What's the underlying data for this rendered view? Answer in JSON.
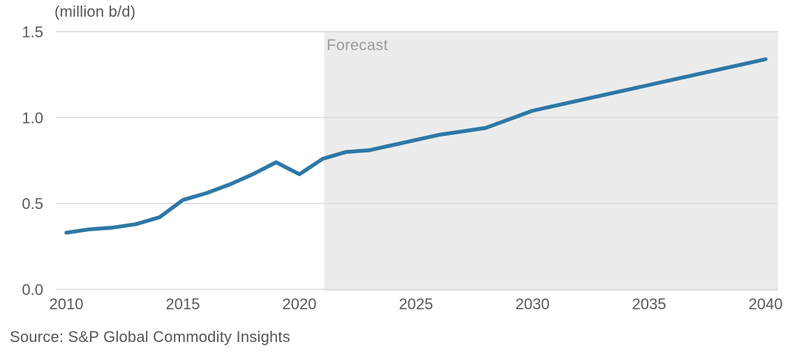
{
  "source": "Source: S&P Global Commodity Insights",
  "chart_data": {
    "type": "line",
    "title": "(million b/d)",
    "xlabel": "",
    "ylabel": "(million b/d)",
    "forecast_label": "Forecast",
    "forecast_start": 2021,
    "xlim": [
      2010,
      2040
    ],
    "ylim": [
      0,
      1.5
    ],
    "grid": true,
    "legend": "none",
    "line_color": "#2E78A6",
    "forecast_shade_color": "#ECECEC",
    "grid_color": "#D7D7D7",
    "x": [
      2010,
      2011,
      2012,
      2013,
      2014,
      2015,
      2016,
      2017,
      2018,
      2019,
      2020,
      2021,
      2022,
      2023,
      2024,
      2025,
      2026,
      2027,
      2028,
      2029,
      2030,
      2031,
      2032,
      2033,
      2034,
      2035,
      2036,
      2037,
      2038,
      2039,
      2040
    ],
    "series": [
      {
        "name": "million b/d",
        "values": [
          0.33,
          0.35,
          0.36,
          0.38,
          0.42,
          0.52,
          0.56,
          0.61,
          0.67,
          0.74,
          0.67,
          0.76,
          0.8,
          0.81,
          0.84,
          0.87,
          0.9,
          0.92,
          0.94,
          0.99,
          1.04,
          1.07,
          1.1,
          1.13,
          1.16,
          1.19,
          1.22,
          1.25,
          1.28,
          1.31,
          1.34
        ]
      }
    ],
    "xticks": [
      {
        "v": 2010,
        "label": "2010"
      },
      {
        "v": 2015,
        "label": "2015"
      },
      {
        "v": 2020,
        "label": "2020"
      },
      {
        "v": 2025,
        "label": "2025"
      },
      {
        "v": 2030,
        "label": "2030"
      },
      {
        "v": 2035,
        "label": "2035"
      },
      {
        "v": 2040,
        "label": "2040"
      }
    ],
    "yticks": [
      {
        "v": 0,
        "label": "0.0"
      },
      {
        "v": 0.5,
        "label": "0.5"
      },
      {
        "v": 1.0,
        "label": "1.0"
      },
      {
        "v": 1.5,
        "label": "1.5"
      }
    ]
  }
}
